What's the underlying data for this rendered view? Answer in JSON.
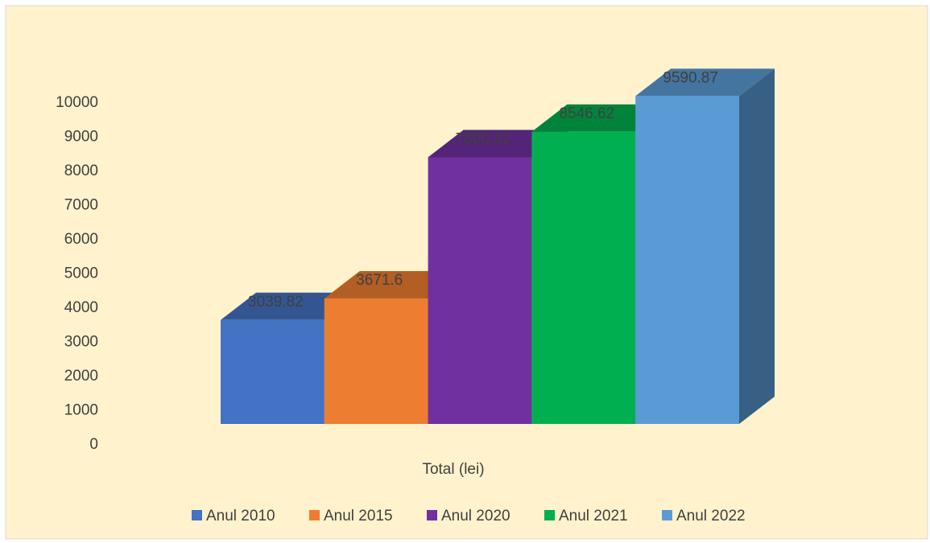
{
  "chart_data": {
    "type": "bar3d",
    "categories": [
      "Total (lei)"
    ],
    "series": [
      {
        "name": "Anul 2010",
        "color": "#4472c4",
        "values": [
          3039.82
        ]
      },
      {
        "name": "Anul 2015",
        "color": "#ed7d31",
        "values": [
          3671.6
        ]
      },
      {
        "name": "Anul 2020",
        "color": "#7030a0",
        "values": [
          7800.42
        ]
      },
      {
        "name": "Anul 2021",
        "color": "#00b050",
        "values": [
          8546.62
        ]
      },
      {
        "name": "Anul 2022",
        "color": "#5b9bd5",
        "values": [
          9590.87
        ]
      }
    ],
    "ylim": [
      0,
      10000
    ],
    "yticks": [
      0,
      1000,
      2000,
      3000,
      4000,
      5000,
      6000,
      7000,
      8000,
      9000,
      10000
    ],
    "legend": "bottom"
  }
}
